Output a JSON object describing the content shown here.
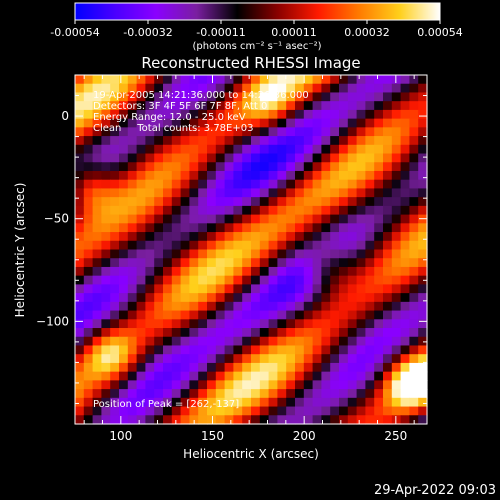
{
  "colorbar": {
    "tick_labels": [
      "-0.00054",
      "-0.00032",
      "-0.00011",
      "0.00011",
      "0.00032",
      "0.00054"
    ],
    "units": "(photons cm⁻² s⁻¹ asec⁻²)",
    "range": [
      -0.00054,
      0.00054
    ],
    "colormap": [
      "#0000ff",
      "#4a00ff",
      "#8a00ff",
      "#7a1fa0",
      "#000000",
      "#8a0000",
      "#ff1a00",
      "#ff7a00",
      "#ffcf1a",
      "#ffffff"
    ]
  },
  "chart_data": {
    "type": "heatmap",
    "title": "Reconstructed RHESSI Image",
    "info_lines": [
      "19-Apr-2005 14:21:36.000 to 14:26:36.000",
      "Detectors: 3F 4F 5F 6F 7F 8F, Att 0",
      "Energy Range: 12.0 - 25.0 keV",
      "Clean     Total counts: 3.78E+03"
    ],
    "peak_label": "Position of Peak = [262,-137]",
    "xlabel": "Heliocentric X (arcsec)",
    "ylabel": "Heliocentric Y (arcsec)",
    "xlim": [
      75,
      267
    ],
    "ylim": [
      -150,
      20
    ],
    "xticks": [
      100,
      150,
      200,
      250
    ],
    "yticks": [
      0,
      -50,
      -100
    ],
    "peak": [
      262,
      -137
    ]
  },
  "footer": {
    "timestamp": "29-Apr-2022 09:03"
  }
}
